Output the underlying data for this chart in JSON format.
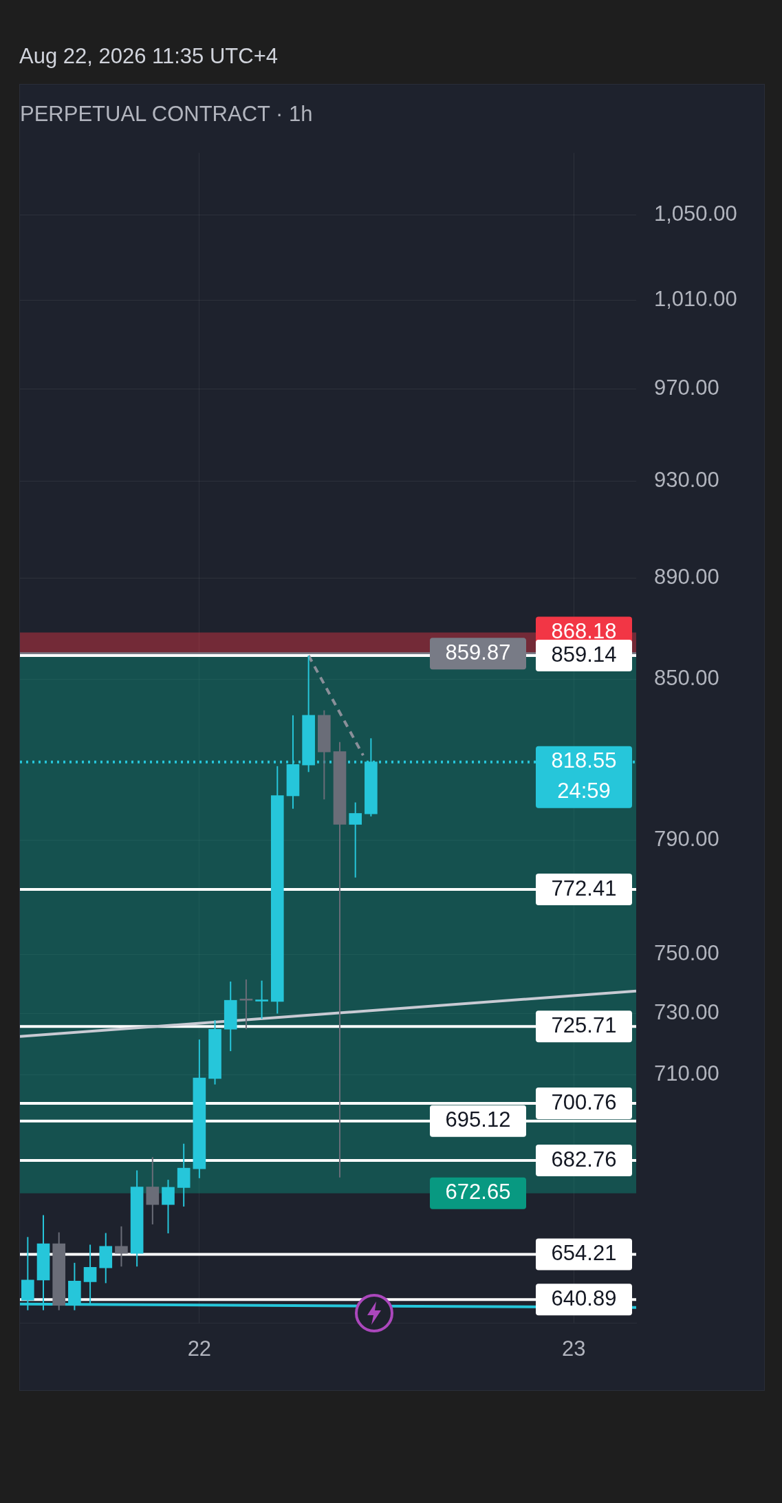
{
  "chart_data": {
    "type": "candlestick",
    "title": "PERPETUAL CONTRACT · 1h",
    "subtitle": "Aug 22, 2026 11:35 UTC+4",
    "xlim": [
      "2026-08-21T12:30",
      "2026-08-23T04:00"
    ],
    "xticks": [
      {
        "value": "2026-08-22",
        "label": "22"
      },
      {
        "value": "2026-08-23",
        "label": "23"
      }
    ],
    "ylim": [
      634,
      1080
    ],
    "log": "y",
    "yticks": [
      {
        "value": 710,
        "label": "710.00"
      },
      {
        "value": 730,
        "label": "730.00"
      },
      {
        "value": 750,
        "label": "750.00"
      },
      {
        "value": 790,
        "label": "790.00"
      },
      {
        "value": 850,
        "label": "850.00"
      },
      {
        "value": 890,
        "label": "890.00"
      },
      {
        "value": 930,
        "label": "930.00"
      },
      {
        "value": 970,
        "label": "970.00"
      },
      {
        "value": 1010,
        "label": "1,010.00"
      },
      {
        "value": 1050,
        "label": "1,050.00"
      }
    ],
    "grid": true,
    "legend": false,
    "series": [
      {
        "x": [
          "2026-08-21T13:00",
          "2026-08-21T14:00",
          "2026-08-21T15:00",
          "2026-08-21T16:00",
          "2026-08-21T17:00",
          "2026-08-21T18:00",
          "2026-08-21T19:00",
          "2026-08-21T20:00",
          "2026-08-21T21:00",
          "2026-08-21T22:00",
          "2026-08-21T23:00",
          "2026-08-22T00:00",
          "2026-08-22T01:00",
          "2026-08-22T02:00",
          "2026-08-22T03:00",
          "2026-08-22T04:00",
          "2026-08-22T05:00",
          "2026-08-22T06:00",
          "2026-08-22T07:00",
          "2026-08-22T08:00",
          "2026-08-22T09:00",
          "2026-08-22T10:00",
          "2026-08-22T11:00"
        ],
        "ohlc": [
          [
            640.7,
            659.4,
            637.8,
            646.6
          ],
          [
            646.6,
            666.0,
            637.8,
            657.4
          ],
          [
            657.4,
            660.8,
            637.8,
            639.2
          ],
          [
            639.2,
            651.7,
            637.8,
            646.3
          ],
          [
            646.1,
            657.1,
            639.4,
            650.4
          ],
          [
            650.2,
            660.6,
            645.7,
            656.6
          ],
          [
            656.6,
            662.6,
            650.6,
            654.5
          ],
          [
            654.5,
            679.7,
            650.6,
            674.6
          ],
          [
            674.6,
            683.8,
            663.2,
            669.2
          ],
          [
            669.2,
            676.8,
            660.5,
            674.5
          ],
          [
            674.4,
            688.0,
            668.6,
            680.4
          ],
          [
            680.2,
            721.4,
            677.3,
            708.9
          ],
          [
            708.7,
            727.8,
            706.8,
            724.8
          ],
          [
            724.8,
            740.7,
            717.6,
            734.4
          ],
          [
            734.6,
            741.4,
            724.8,
            734.4
          ],
          [
            734.1,
            741.0,
            728.2,
            734.3
          ],
          [
            734.0,
            817.0,
            730.0,
            806.1
          ],
          [
            806.0,
            836.1,
            801.3,
            817.6
          ],
          [
            817.4,
            859.14,
            814.8,
            836.1
          ],
          [
            836.1,
            838.0,
            804.7,
            822.3
          ],
          [
            822.4,
            826.0,
            677.5,
            795.6
          ],
          [
            795.6,
            803.6,
            776.6,
            799.6
          ],
          [
            799.4,
            827.4,
            798.5,
            818.55
          ]
        ],
        "colors": [
          "#26c6da",
          "#26c6da",
          "#6a6d78",
          "#26c6da",
          "#26c6da",
          "#26c6da",
          "#6a6d78",
          "#26c6da",
          "#6a6d78",
          "#26c6da",
          "#26c6da",
          "#26c6da",
          "#26c6da",
          "#26c6da",
          "#6a6d78",
          "#26c6da",
          "#26c6da",
          "#26c6da",
          "#26c6da",
          "#6a6d78",
          "#6a6d78",
          "#26c6da",
          "#26c6da"
        ]
      },
      {
        "type": "line",
        "x": [
          "2026-08-21T12:30",
          "2026-08-23T04:00"
        ],
        "values": [
          722.4,
          737.5
        ],
        "color": "#c8cad3",
        "line_style": "solid",
        "marker": "none"
      },
      {
        "type": "line",
        "x": [
          "2026-08-21T12:30",
          "2026-08-23T04:00"
        ],
        "values": [
          639.6,
          638.6
        ],
        "color": "#26c6da",
        "line_style": "solid",
        "marker": "none"
      },
      {
        "type": "line",
        "x": [
          "2026-08-22T07:00",
          "2026-08-22T10:30"
        ],
        "values": [
          859.14,
          821
        ],
        "color": "#8a8f99",
        "line_style": "dashed",
        "marker": "none"
      }
    ],
    "bands": [
      {
        "axis": "y",
        "from": 868.18,
        "to": 859.87,
        "label": "868.18",
        "color": "#f23645"
      },
      {
        "axis": "y",
        "from": 672.65,
        "to": 859.87,
        "label": "672.65",
        "color": "#089981"
      }
    ],
    "ref_lines": [
      {
        "axis": "y",
        "value": 859.87,
        "label": "859.87",
        "color": "#787b86",
        "line_style": "solid"
      },
      {
        "axis": "y",
        "value": 859.14,
        "label": "859.14",
        "color": "#ffffff",
        "line_style": "solid"
      },
      {
        "axis": "y",
        "value": 818.55,
        "label": "818.55\n24:59",
        "color": "#26c6da",
        "line_style": "dotted"
      },
      {
        "axis": "y",
        "value": 772.41,
        "label": "772.41",
        "color": "#ffffff",
        "line_style": "solid"
      },
      {
        "axis": "y",
        "value": 725.71,
        "label": "725.71",
        "color": "#ffffff",
        "line_style": "solid"
      },
      {
        "axis": "y",
        "value": 700.76,
        "label": "700.76",
        "color": "#ffffff",
        "line_style": "solid"
      },
      {
        "axis": "y",
        "value": 695.12,
        "label": "695.12",
        "color": "#ffffff",
        "line_style": "solid"
      },
      {
        "axis": "y",
        "value": 682.76,
        "label": "682.76",
        "color": "#ffffff",
        "line_style": "solid"
      },
      {
        "axis": "y",
        "value": 654.21,
        "label": "654.21",
        "color": "#ffffff",
        "line_style": "solid"
      },
      {
        "axis": "y",
        "value": 640.89,
        "label": "640.89",
        "color": "#ffffff",
        "line_style": "solid"
      }
    ]
  }
}
